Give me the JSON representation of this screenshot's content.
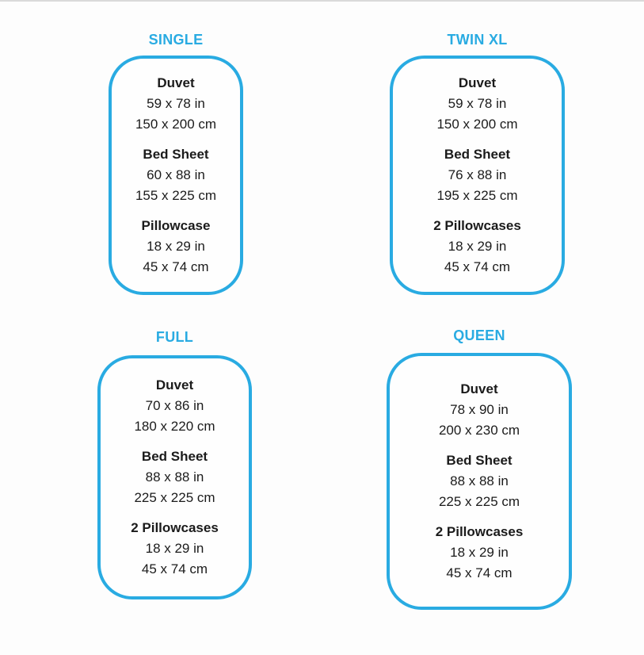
{
  "page": {
    "accent_color": "#29abe2",
    "text_color": "#1b1b1b",
    "background": "#fdfdfd"
  },
  "cards": [
    {
      "id": "single",
      "title": "SINGLE",
      "sections": [
        {
          "label": "Duvet",
          "inches": "59 x 78 in",
          "cm": "150 x 200 cm"
        },
        {
          "label": "Bed Sheet",
          "inches": "60 x 88 in",
          "cm": "155 x 225 cm"
        },
        {
          "label": "Pillowcase",
          "inches": "18 x 29 in",
          "cm": "45 x 74 cm"
        }
      ]
    },
    {
      "id": "twin-xl",
      "title": "TWIN XL",
      "sections": [
        {
          "label": "Duvet",
          "inches": "59 x 78 in",
          "cm": "150 x 200 cm"
        },
        {
          "label": "Bed Sheet",
          "inches": "76 x 88 in",
          "cm": "195 x 225 cm"
        },
        {
          "label": "2 Pillowcases",
          "inches": "18 x 29 in",
          "cm": "45 x 74 cm"
        }
      ]
    },
    {
      "id": "full",
      "title": "FULL",
      "sections": [
        {
          "label": "Duvet",
          "inches": "70 x 86 in",
          "cm": "180 x 220 cm"
        },
        {
          "label": "Bed Sheet",
          "inches": "88 x 88 in",
          "cm": "225 x 225 cm"
        },
        {
          "label": "2 Pillowcases",
          "inches": "18 x 29 in",
          "cm": "45 x 74 cm"
        }
      ]
    },
    {
      "id": "queen",
      "title": "QUEEN",
      "sections": [
        {
          "label": "Duvet",
          "inches": "78 x 90 in",
          "cm": "200 x 230 cm"
        },
        {
          "label": "Bed Sheet",
          "inches": "88 x 88 in",
          "cm": "225 x 225 cm"
        },
        {
          "label": "2 Pillowcases",
          "inches": "18 x 29 in",
          "cm": "45 x 74 cm"
        }
      ]
    }
  ]
}
